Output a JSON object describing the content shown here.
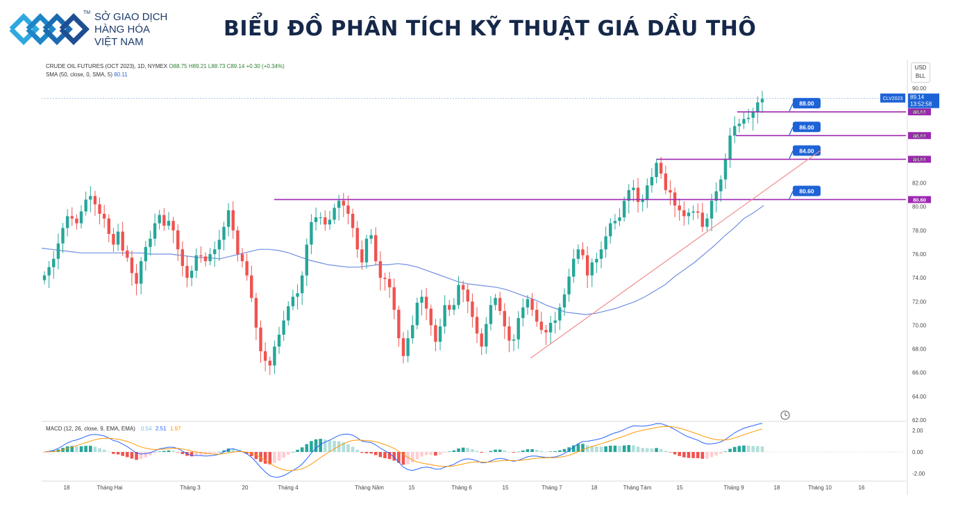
{
  "header": {
    "brand_lines": [
      "SỞ GIAO DỊCH",
      "HÀNG HÓA",
      "VIỆT NAM"
    ],
    "trademark": "TM",
    "title": "BIỂU ĐỒ PHÂN TÍCH KỸ THUẬT GIÁ DẦU THÔ"
  },
  "chart_info": {
    "symbol_line": "CRUDE OIL FUTURES (OCT 2023), 1D, NYMEX",
    "ohlc": "O88.75 H89.21 L88.73 C89.14 +0.30 (+0.34%)",
    "sma_label": "SMA (50, close, 0, SMA, 5)",
    "sma_value": "80.11",
    "currency_top": "USD",
    "currency_bottom": "BLL",
    "macd_label": "MACD (12, 26, close, 9, EMA, EMA)",
    "macd_values": [
      "0.54",
      "2.51",
      "1.97"
    ],
    "symbol_tag": "CLV2023",
    "last_price": "89.14",
    "countdown": "13:52:58"
  },
  "colors": {
    "up": "#26a69a",
    "down": "#ef5350",
    "sma": "#6f8fe0",
    "level": "#9c27b0",
    "trend": "#ef5350",
    "label_blue": "#1e63d6",
    "macd_line": "#2962ff",
    "signal_line": "#ff9800"
  },
  "chart_data": [
    {
      "type": "candlestick",
      "ylim": [
        62,
        90
      ],
      "y_ticks": [
        "90.00",
        "88.00",
        "86.00",
        "84.00",
        "82.00",
        "80.00",
        "78.00",
        "76.00",
        "74.00",
        "72.00",
        "70.00",
        "68.00",
        "66.00",
        "64.00",
        "62.00"
      ],
      "x_ticks": [
        "18",
        "Tháng Hai",
        "Tháng 3",
        "20",
        "Tháng 4",
        "Tháng Năm",
        "15",
        "Tháng 6",
        "15",
        "Tháng 7",
        "18",
        "Tháng Tám",
        "15",
        "Tháng 9",
        "18",
        "Tháng 10",
        "16"
      ],
      "resistance_levels": [
        {
          "value": 88.0,
          "label": "88.00",
          "axis_label": "88.00"
        },
        {
          "value": 86.0,
          "label": "86.00",
          "axis_label": "86.00"
        },
        {
          "value": 84.0,
          "label": "84.00",
          "axis_label": "84.00"
        },
        {
          "value": 80.6,
          "label": "80.60",
          "axis_label": "80.60"
        }
      ],
      "close": [
        74.2,
        74.9,
        75.6,
        76.9,
        78.2,
        79.2,
        79.0,
        78.6,
        79.6,
        80.6,
        80.9,
        80.2,
        79.4,
        79.0,
        77.7,
        76.8,
        77.9,
        76.3,
        75.7,
        74.4,
        73.5,
        75.4,
        76.6,
        77.3,
        78.6,
        79.3,
        78.4,
        78.8,
        78.0,
        76.4,
        75.0,
        74.0,
        74.6,
        75.9,
        75.8,
        75.4,
        76.0,
        76.4,
        77.2,
        78.3,
        79.7,
        78.0,
        76.0,
        75.4,
        74.2,
        72.3,
        69.8,
        67.8,
        67.0,
        66.6,
        68.2,
        69.2,
        70.4,
        71.6,
        72.4,
        72.7,
        74.2,
        76.8,
        78.7,
        79.1,
        79.1,
        78.5,
        78.9,
        79.9,
        80.5,
        80.1,
        79.4,
        78.2,
        76.4,
        75.3,
        77.3,
        77.6,
        75.4,
        74.0,
        73.9,
        73.2,
        71.3,
        68.9,
        67.4,
        68.9,
        70.0,
        71.9,
        72.4,
        71.4,
        70.0,
        68.6,
        69.9,
        71.7,
        71.3,
        71.7,
        73.4,
        73.0,
        72.0,
        70.7,
        69.3,
        68.2,
        70.1,
        71.7,
        72.3,
        71.2,
        69.9,
        68.7,
        68.8,
        70.6,
        71.5,
        72.2,
        71.3,
        70.3,
        69.6,
        69.4,
        70.2,
        70.4,
        71.5,
        72.6,
        74.1,
        75.6,
        76.4,
        75.9,
        74.2,
        75.3,
        75.6,
        76.4,
        77.5,
        78.6,
        78.8,
        79.1,
        80.5,
        81.4,
        81.6,
        80.4,
        80.6,
        81.8,
        82.5,
        83.7,
        82.8,
        81.4,
        81.2,
        80.1,
        79.7,
        79.2,
        79.5,
        79.6,
        79.5,
        78.3,
        79.0,
        80.5,
        81.3,
        82.3,
        84.0,
        86.0,
        86.8,
        87.0,
        87.4,
        87.5,
        88.0,
        88.8,
        89.1
      ],
      "sma": [
        76.5,
        76.4,
        76.3,
        76.2,
        76.1,
        76.1,
        76.1,
        76.1,
        76.1,
        76.1,
        76.1,
        76.0,
        76.0,
        76.0,
        75.9,
        75.8,
        75.7,
        75.7,
        75.6,
        75.8,
        76.0,
        76.2,
        76.4,
        76.4,
        76.3,
        76.1,
        75.8,
        75.5,
        75.3,
        75.1,
        75.0,
        74.9,
        74.9,
        75.0,
        75.1,
        75.1,
        75.2,
        75.1,
        74.9,
        74.6,
        74.3,
        74.0,
        73.7,
        73.5,
        73.4,
        73.3,
        73.2,
        73.0,
        72.7,
        72.4,
        72.1,
        71.7,
        71.4,
        71.1,
        71.0,
        70.9,
        71.0,
        71.2,
        71.4,
        71.7,
        72.0,
        72.4,
        72.9,
        73.4,
        74.1,
        74.7,
        75.3,
        76.0,
        76.7,
        77.5,
        78.2,
        79.0,
        79.5,
        80.1
      ]
    },
    {
      "type": "macd",
      "title": "MACD (12, 26, close, 9, EMA, EMA)",
      "ylim": [
        -2.5,
        2.5
      ],
      "y_ticks": [
        "2.00",
        "0.00",
        "-2.00"
      ]
    }
  ]
}
